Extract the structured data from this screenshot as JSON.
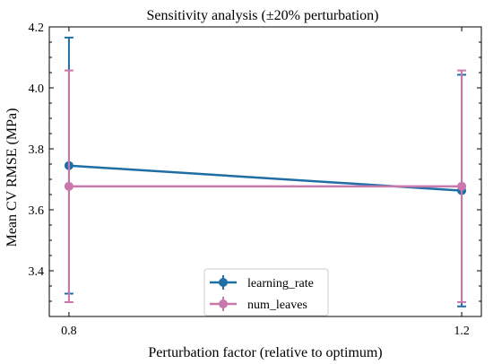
{
  "chart_data": {
    "type": "line",
    "title": "Sensitivity analysis (±20% perturbation)",
    "xlabel": "Perturbation factor (relative to optimum)",
    "ylabel": "Mean CV RMSE (MPa)",
    "x": [
      0.8,
      1.2
    ],
    "x_tick_labels": [
      "0.8",
      "1.2"
    ],
    "y_ticks": [
      3.4,
      3.6,
      3.8,
      4.0,
      4.2
    ],
    "y_tick_labels": [
      "3.4",
      "3.6",
      "3.8",
      "4.0",
      "4.2"
    ],
    "xlim": [
      0.78,
      1.22
    ],
    "ylim": [
      3.25,
      4.2
    ],
    "legend_position": "bottom-center",
    "grid": false,
    "series": [
      {
        "name": "learning_rate",
        "color": "#1f6fa5",
        "values": [
          3.745,
          3.663
        ],
        "error": [
          0.42,
          0.38
        ]
      },
      {
        "name": "num_leaves",
        "color": "#c878ac",
        "values": [
          3.677,
          3.677
        ],
        "error": [
          0.38,
          0.38
        ]
      }
    ]
  }
}
